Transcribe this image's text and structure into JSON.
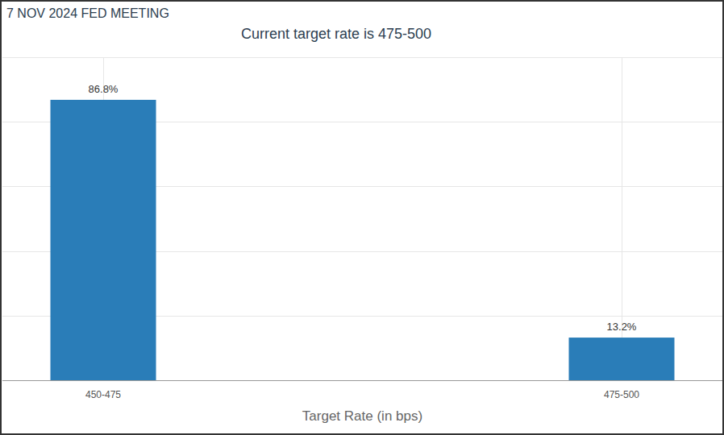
{
  "chart_data": {
    "type": "bar",
    "title": "7 NOV 2024 FED MEETING",
    "subtitle": "Current target rate is 475-500",
    "x_label": "Target Rate (in bps)",
    "categories": [
      "450-475",
      "475-500"
    ],
    "values": [
      86.8,
      13.2
    ],
    "value_labels": [
      "86.8%",
      "13.2%"
    ],
    "color": "#2a7db8",
    "ylim": [
      0,
      100
    ],
    "yticks": [
      0,
      20,
      40,
      60,
      80,
      100
    ],
    "grid": true,
    "data_labels": true,
    "tick_labels": "x"
  }
}
